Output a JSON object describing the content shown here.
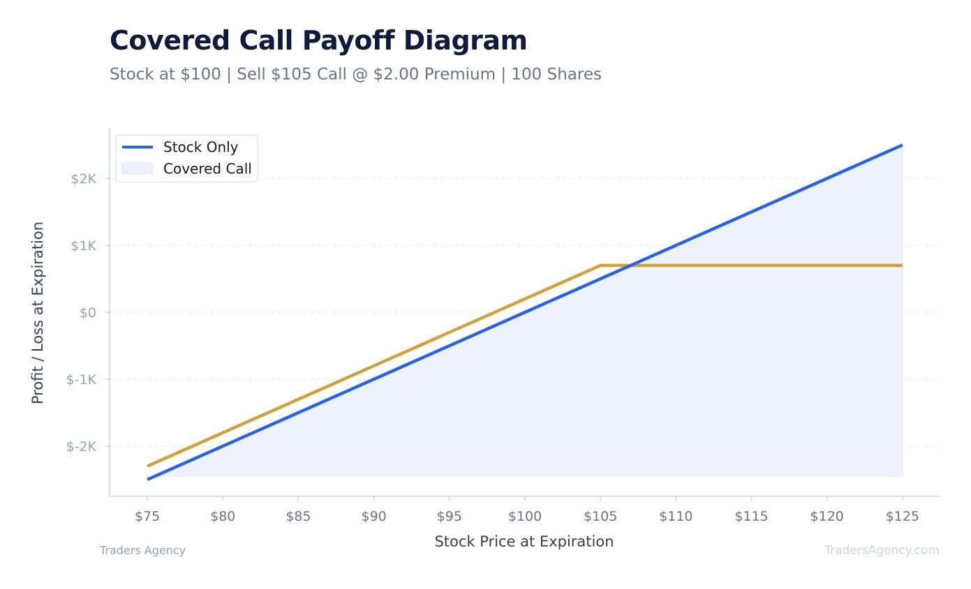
{
  "header": {
    "title": "Covered Call Payoff Diagram",
    "subtitle": "Stock at $100 | Sell $105 Call @ $2.00 Premium | 100 Shares"
  },
  "footer": {
    "left": "Traders Agency",
    "right": "TradersAgency.com"
  },
  "chart_data": {
    "type": "line",
    "xlabel": "Stock Price at Expiration",
    "ylabel": "Profit / Loss at Expiration",
    "xlim": [
      72.5,
      127.5
    ],
    "ylim": [
      -2750,
      2750
    ],
    "x_ticks": [
      75,
      80,
      85,
      90,
      95,
      100,
      105,
      110,
      115,
      120,
      125
    ],
    "x_tick_labels": [
      "$75",
      "$80",
      "$85",
      "$90",
      "$95",
      "$100",
      "$105",
      "$110",
      "$115",
      "$120",
      "$125"
    ],
    "y_ticks": [
      -2000,
      -1000,
      0,
      1000,
      2000
    ],
    "y_tick_labels": [
      "$-2K",
      "$-1K",
      "$0",
      "$1K",
      "$2K"
    ],
    "grid": "horizontal dashed",
    "legend_position": "top-left",
    "legend": [
      {
        "label": "Stock Only",
        "style": "line"
      },
      {
        "label": "Covered Call",
        "style": "fill"
      }
    ],
    "series": [
      {
        "name": "Stock Only",
        "color": "#2563eb",
        "x": [
          75,
          125
        ],
        "y": [
          -2500,
          2500
        ]
      },
      {
        "name": "Covered Call",
        "color": "#d4a03a",
        "x": [
          75,
          105,
          125
        ],
        "y": [
          -2300,
          700,
          700
        ]
      }
    ],
    "shaded_area": {
      "color": "#eef2fd",
      "x": [
        75,
        125
      ],
      "y_bottom": -2450,
      "y_top_series": "Stock Only"
    }
  }
}
